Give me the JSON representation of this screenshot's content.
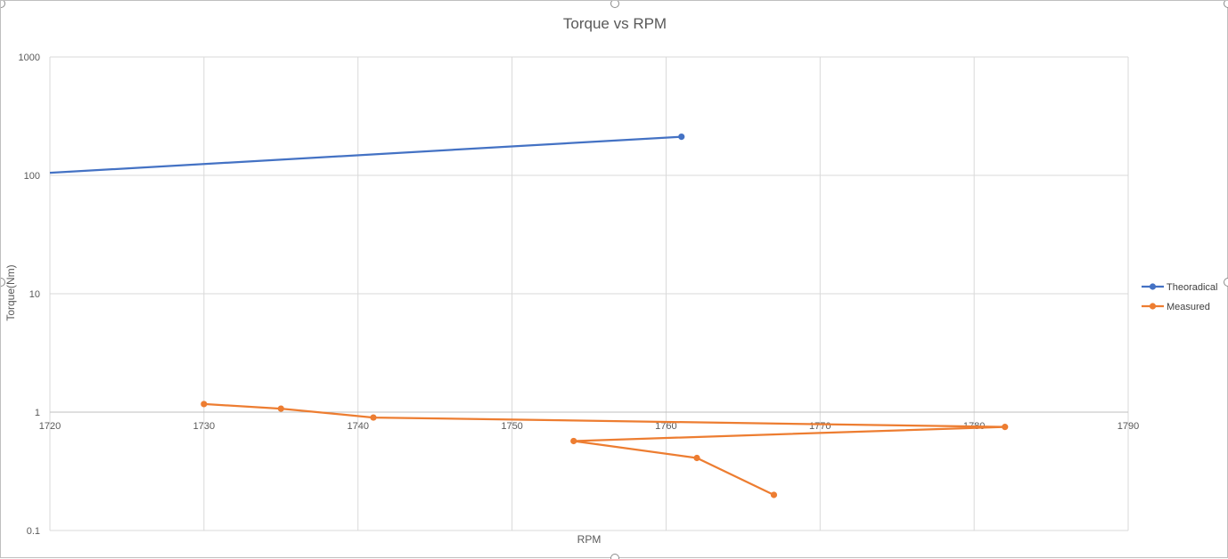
{
  "chart_data": {
    "type": "scatter",
    "title": "Torque vs RPM",
    "xlabel": "RPM",
    "ylabel": "Torque(Nm)",
    "xlim": [
      1720,
      1790
    ],
    "ylim": [
      0.1,
      1000
    ],
    "yscale": "log",
    "grid": true,
    "legend_position": "right",
    "x_ticks": [
      "1720",
      "1730",
      "1740",
      "1750",
      "1760",
      "1770",
      "1780",
      "1790"
    ],
    "y_ticks": [
      "0.1",
      "1",
      "10",
      "100",
      "1000"
    ],
    "series": [
      {
        "name": "Theoradical",
        "color": "#4472c4",
        "points": [
          {
            "x": 1720,
            "y": 105,
            "marker": false
          },
          {
            "x": 1761,
            "y": 212,
            "marker": true
          }
        ]
      },
      {
        "name": "Measured",
        "color": "#ed7d31",
        "points": [
          {
            "x": 1730,
            "y": 1.17,
            "marker": true
          },
          {
            "x": 1735,
            "y": 1.07,
            "marker": true
          },
          {
            "x": 1741,
            "y": 0.9,
            "marker": true
          },
          {
            "x": 1782,
            "y": 0.75,
            "marker": true
          },
          {
            "x": 1754,
            "y": 0.57,
            "marker": true
          },
          {
            "x": 1762,
            "y": 0.41,
            "marker": true
          },
          {
            "x": 1767,
            "y": 0.2,
            "marker": true
          }
        ]
      }
    ]
  }
}
